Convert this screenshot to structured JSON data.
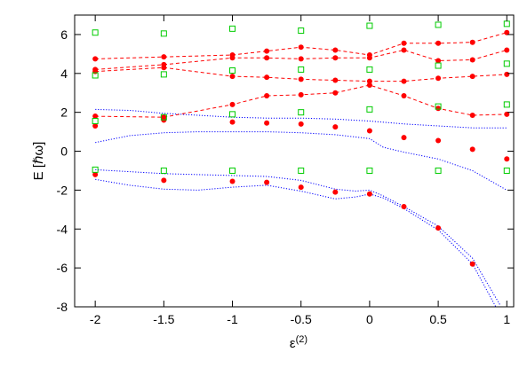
{
  "chart_data": {
    "type": "scatter",
    "xlabel": "ε(2)",
    "xlabel_base": "ε",
    "xlabel_sup": "(2)",
    "ylabel": "E [ℏω]",
    "xlim": [
      -2.15,
      1.05
    ],
    "ylim": [
      -8,
      7
    ],
    "x_ticks": [
      -2,
      -1.5,
      -1,
      -0.5,
      0,
      0.5,
      1
    ],
    "x_tick_labels": [
      "-2",
      "-1.5",
      "-1",
      "-0.5",
      "0",
      "0.5",
      "1"
    ],
    "y_ticks": [
      -8,
      -6,
      -4,
      -2,
      0,
      2,
      4,
      6
    ],
    "y_tick_labels": [
      "-8",
      "-6",
      "-4",
      "-2",
      "0",
      "2",
      "4",
      "6"
    ],
    "grid": false,
    "legend": "none",
    "series": [
      {
        "kind": "dashed-line-markers",
        "marker": "filled-circle",
        "color": "#ff0000",
        "lines": [
          {
            "x": [
              -2,
              -1.5,
              -1,
              -0.75,
              -0.5,
              -0.25,
              0,
              0.25,
              0.5,
              0.75,
              1
            ],
            "y": [
              4.75,
              4.85,
              4.95,
              5.15,
              5.35,
              5.2,
              4.95,
              5.55,
              5.55,
              5.6,
              6.1
            ]
          },
          {
            "x": [
              -2,
              -1.5,
              -1,
              -0.75,
              -0.5,
              -0.25,
              0,
              0.25,
              0.5,
              0.75,
              1
            ],
            "y": [
              4.2,
              4.45,
              4.8,
              4.8,
              4.75,
              4.8,
              4.8,
              5.2,
              4.65,
              4.7,
              5.2
            ]
          },
          {
            "x": [
              -2,
              -1.5,
              -1,
              -0.75,
              -0.5,
              -0.25,
              0,
              0.25,
              0.5,
              0.75,
              1
            ],
            "y": [
              4.1,
              4.3,
              3.85,
              3.8,
              3.7,
              3.65,
              3.6,
              3.6,
              3.75,
              3.85,
              3.95
            ]
          },
          {
            "x": [
              -2,
              -1.5,
              -1,
              -0.75,
              -0.5,
              -0.25,
              0,
              0.25,
              0.5,
              0.75,
              1
            ],
            "y": [
              1.8,
              1.75,
              2.4,
              2.85,
              2.9,
              3.0,
              3.4,
              2.85,
              2.2,
              1.85,
              1.9
            ]
          }
        ]
      },
      {
        "kind": "markers",
        "marker": "filled-circle",
        "color": "#ff0000",
        "x": [
          -2,
          -1.5,
          -1,
          -0.75,
          -0.5,
          -0.25,
          0,
          0.25,
          0.5,
          0.75,
          1,
          -2,
          -1.5,
          -1,
          -0.75,
          -0.5,
          -0.25,
          0,
          0.25,
          0.5,
          0.75
        ],
        "y": [
          1.3,
          1.6,
          1.5,
          1.45,
          1.4,
          1.25,
          1.05,
          0.7,
          0.55,
          0.1,
          -0.4,
          -1.2,
          -1.5,
          -1.55,
          -1.6,
          -1.85,
          -2.1,
          -2.2,
          -2.85,
          -3.95,
          -5.8
        ]
      },
      {
        "kind": "markers",
        "marker": "open-square",
        "color": "#00cc00",
        "x": [
          -2,
          -1.5,
          -1,
          -0.5,
          0,
          0.5,
          1,
          -2,
          -1.5,
          -1,
          -0.5,
          0,
          0.5,
          1,
          -2,
          -1.5,
          -1,
          -0.5,
          0,
          0.5,
          1,
          -2,
          -1.5,
          -1,
          -0.5,
          0,
          0.5,
          1
        ],
        "y": [
          6.1,
          6.05,
          6.3,
          6.2,
          6.45,
          6.5,
          6.55,
          3.9,
          3.95,
          4.15,
          4.2,
          4.2,
          4.4,
          4.5,
          1.55,
          1.75,
          1.9,
          2.0,
          2.15,
          2.3,
          2.4,
          -0.95,
          -1.0,
          -1.0,
          -1.0,
          -1.0,
          -1.0,
          -1.0
        ]
      },
      {
        "kind": "dotted-line",
        "color": "#0000ff",
        "lines": [
          {
            "x": [
              -2,
              -1.75,
              -1.5,
              -1.25,
              -1,
              -0.75,
              -0.5,
              -0.25,
              0,
              0.25,
              0.5,
              0.75,
              1
            ],
            "y": [
              2.15,
              2.1,
              1.95,
              1.85,
              1.75,
              1.7,
              1.7,
              1.65,
              1.55,
              1.4,
              1.3,
              1.2,
              1.2
            ]
          },
          {
            "x": [
              -2,
              -1.75,
              -1.5,
              -1.25,
              -1,
              -0.75,
              -0.5,
              -0.25,
              0,
              0.1,
              0.25,
              0.5,
              0.75,
              1
            ],
            "y": [
              0.45,
              0.8,
              0.95,
              1.0,
              1.0,
              1.0,
              0.95,
              0.85,
              0.65,
              0.2,
              -0.05,
              -0.4,
              -1.0,
              -2.0
            ]
          },
          {
            "x": [
              -2,
              -1.75,
              -1.5,
              -1.25,
              -1,
              -0.75,
              -0.5,
              -0.25,
              -0.1,
              0,
              0.1,
              0.25,
              0.5,
              0.75,
              0.95
            ],
            "y": [
              -0.95,
              -1.05,
              -1.15,
              -1.2,
              -1.25,
              -1.3,
              -1.5,
              -1.95,
              -2.05,
              -2.0,
              -2.3,
              -2.85,
              -3.85,
              -5.5,
              -7.9
            ]
          },
          {
            "x": [
              -2,
              -1.75,
              -1.5,
              -1.25,
              -1,
              -0.75,
              -0.5,
              -0.25,
              -0.1,
              0,
              0.1,
              0.25,
              0.5,
              0.75,
              0.92
            ],
            "y": [
              -1.45,
              -1.75,
              -1.95,
              -2.0,
              -1.85,
              -1.75,
              -2.05,
              -2.45,
              -2.35,
              -2.2,
              -2.4,
              -2.95,
              -4.05,
              -5.8,
              -8.0
            ]
          }
        ]
      }
    ]
  }
}
